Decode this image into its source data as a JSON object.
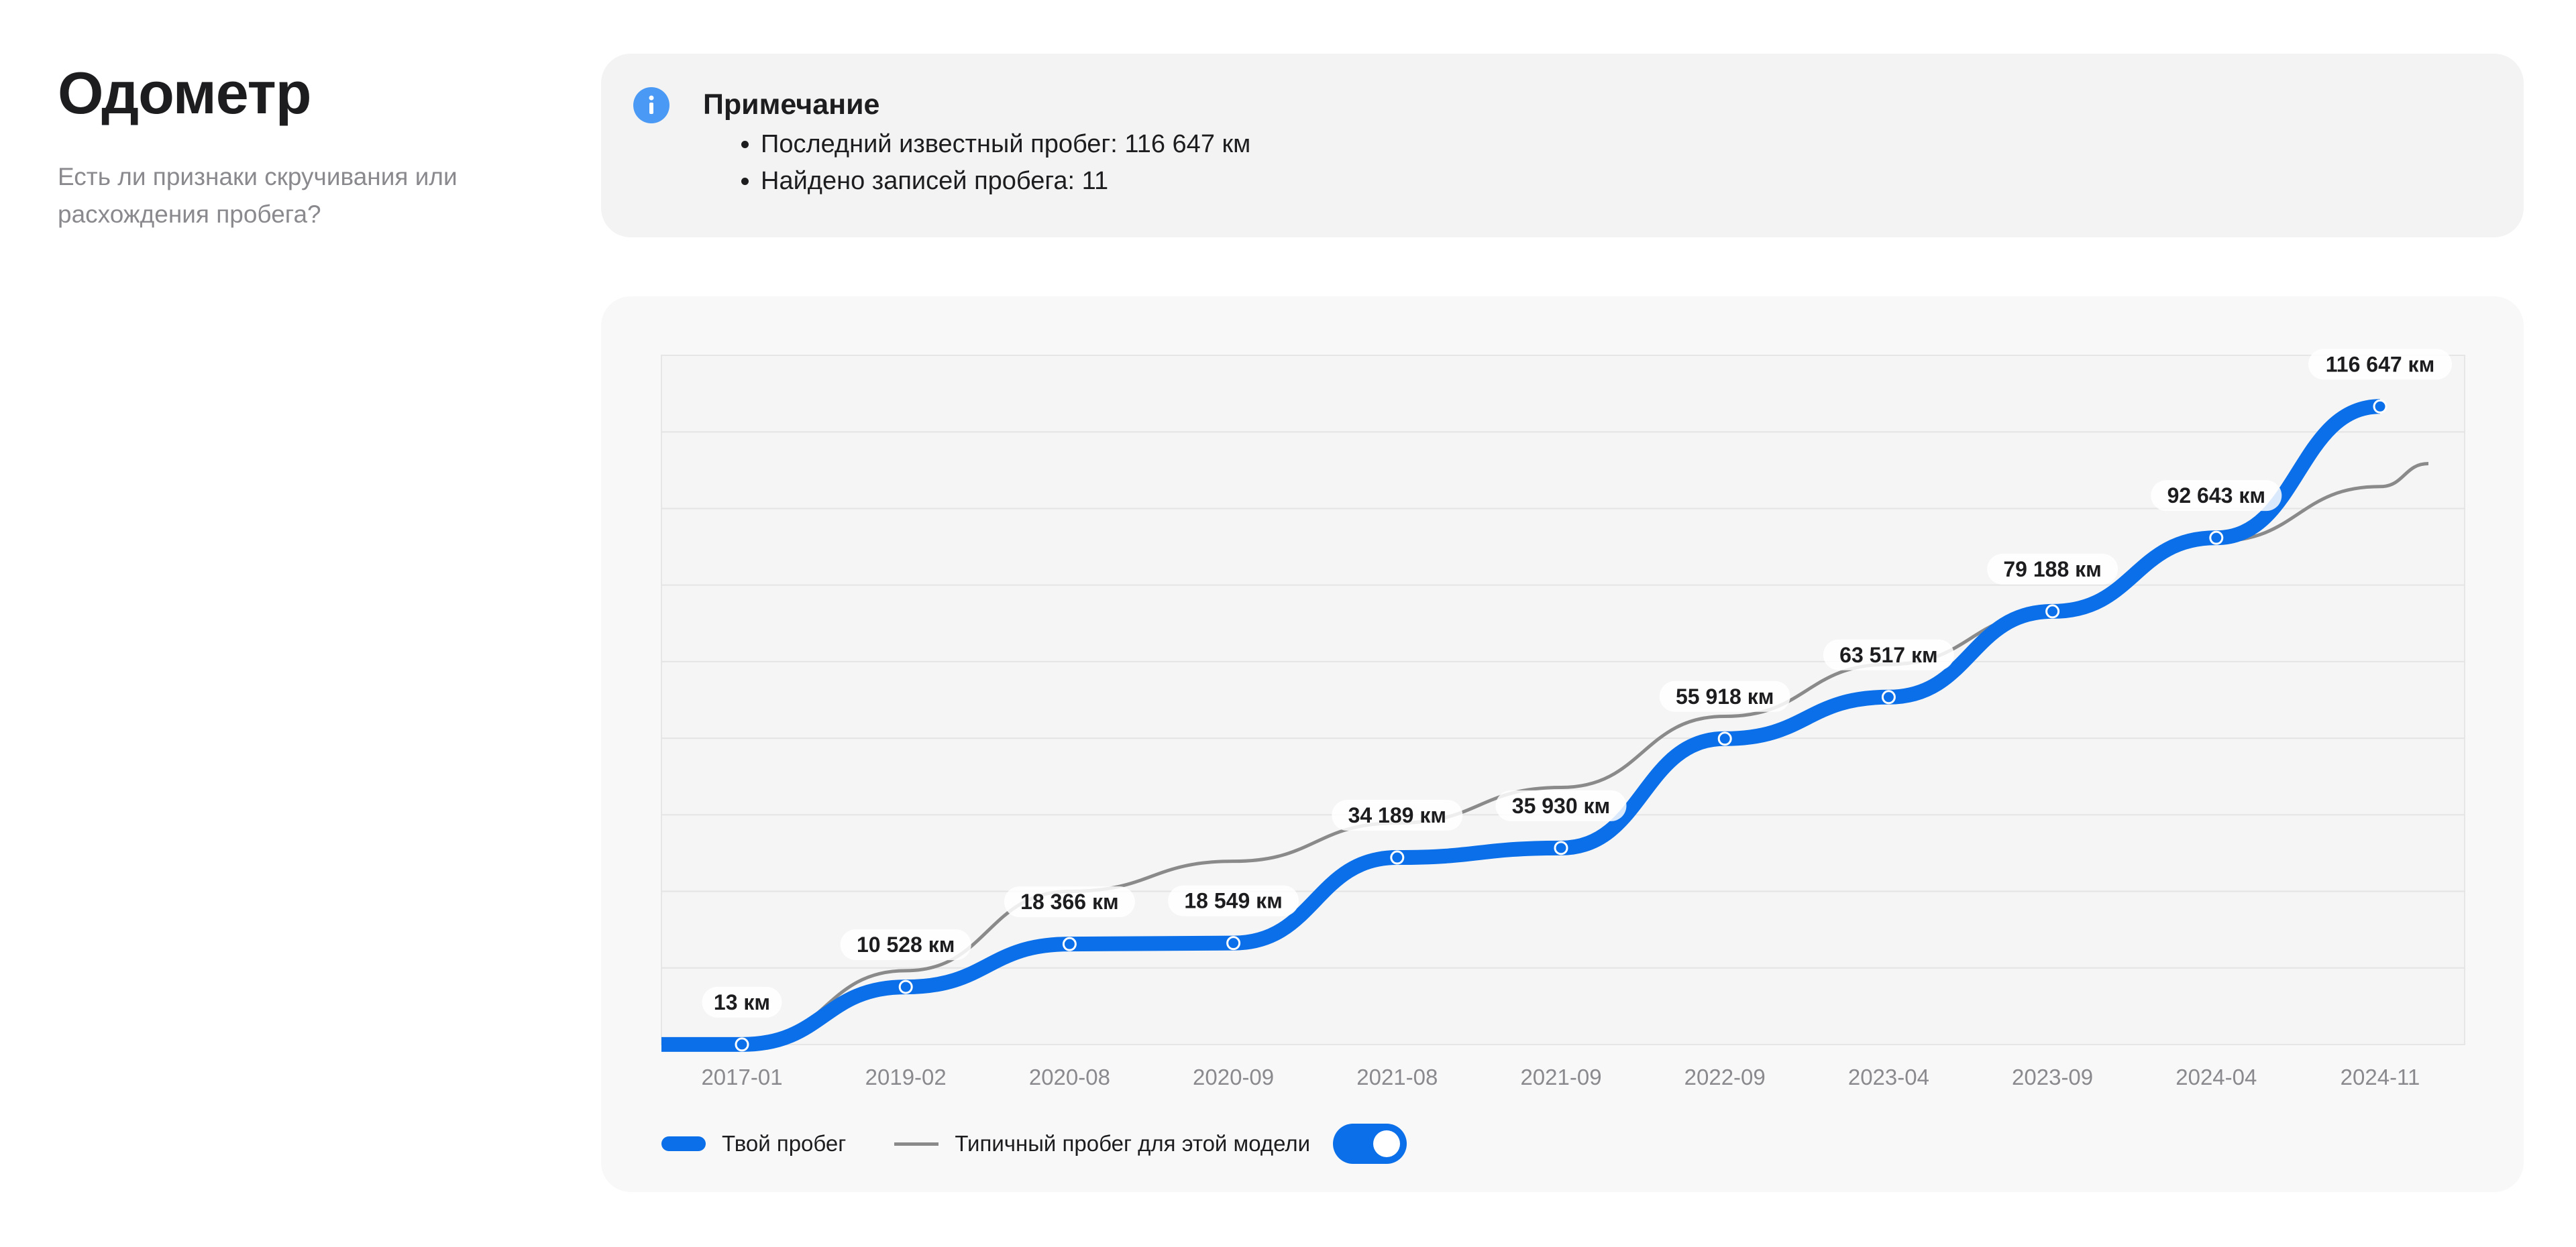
{
  "header": {
    "title": "Одометр",
    "subtitle": "Есть ли признаки скручивания или расхождения пробега?"
  },
  "note": {
    "icon": "info-icon",
    "title": "Примечание",
    "items": [
      "Последний известный пробег: 116 647 км",
      "Найдено записей пробега: 11"
    ]
  },
  "legend": {
    "yours": "Твой пробег",
    "typical": "Типичный пробег для этой модели",
    "toggle_on": true
  },
  "colors": {
    "accent": "#0a6fe8",
    "typical_line": "#8a8a8a",
    "info_icon": "#4a9af5"
  },
  "chart_data": {
    "type": "line",
    "categories": [
      "2017-01",
      "2019-02",
      "2020-08",
      "2020-09",
      "2021-08",
      "2021-09",
      "2022-09",
      "2023-04",
      "2023-09",
      "2024-04",
      "2024-11"
    ],
    "series": [
      {
        "name": "Твой пробег",
        "values": [
          13,
          10528,
          18366,
          18549,
          34189,
          35930,
          55918,
          63517,
          79188,
          92643,
          116647
        ],
        "labels": [
          "13 км",
          "10 528 км",
          "18 366 км",
          "18 549 км",
          "34 189 км",
          "35 930 км",
          "55 918 км",
          "63 517 км",
          "79 188 км",
          "92 643 км",
          "116 647 км"
        ]
      },
      {
        "name": "Типичный пробег для этой модели",
        "values": [
          0,
          13500,
          28000,
          33500,
          40500,
          47000,
          60000,
          69500,
          79000,
          92000,
          102000
        ]
      }
    ],
    "ylim": [
      0,
      126000
    ],
    "grid": true
  }
}
